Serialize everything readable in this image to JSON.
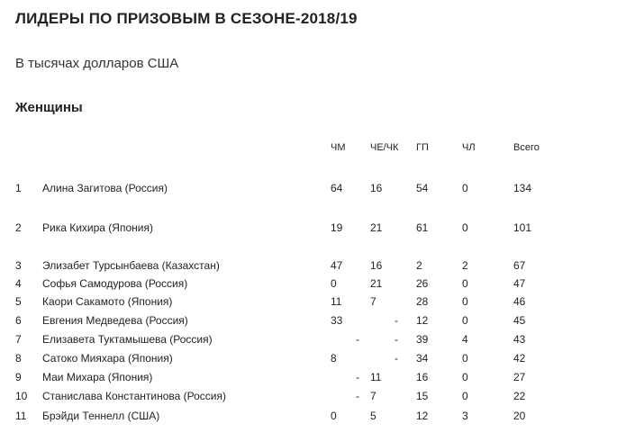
{
  "title": "ЛИДЕРЫ ПО ПРИЗОВЫМ В СЕЗОНЕ-2018/19",
  "subtitle": "В тысячах долларов США",
  "section": "Женщины",
  "columns": [
    "ЧМ",
    "ЧЕ/ЧК",
    "ГП",
    "ЧЛ",
    "Всего"
  ],
  "rows": [
    {
      "rank": "1",
      "name": "Алина Загитова (Россия)",
      "cells": [
        "64",
        "16",
        "54",
        "0",
        "134"
      ]
    },
    {
      "rank": "2",
      "name": "Рика Кихира (Япония)",
      "cells": [
        "19",
        "21",
        "61",
        "0",
        "101"
      ]
    },
    {
      "rank": "3",
      "name": "Элизабет Турсынбаева (Казахстан)",
      "cells": [
        "47",
        "16",
        "2",
        "2",
        "67"
      ]
    },
    {
      "rank": "4",
      "name": "Софья Самодурова (Россия)",
      "cells": [
        "0",
        "21",
        "26",
        "0",
        "47"
      ]
    },
    {
      "rank": "5",
      "name": "Каори Сакамото (Япония)",
      "cells": [
        "11",
        "7",
        "28",
        "0",
        "46"
      ]
    },
    {
      "rank": "6",
      "name": "Евгения Медведева (Россия)",
      "cells": [
        "33",
        "-",
        "12",
        "0",
        "45"
      ]
    },
    {
      "rank": "7",
      "name": "Елизавета Туктамышева (Россия)",
      "cells": [
        "-",
        "-",
        "39",
        "4",
        "43"
      ]
    },
    {
      "rank": "8",
      "name": "Сатоко Мияхара (Япония)",
      "cells": [
        "8",
        "-",
        "34",
        "0",
        "42"
      ]
    },
    {
      "rank": "9",
      "name": "Маи Михара (Япония)",
      "cells": [
        "-",
        "11",
        "16",
        "0",
        "27"
      ]
    },
    {
      "rank": "10",
      "name": "Станислава Константинова (Россия)",
      "cells": [
        "-",
        "7",
        "15",
        "0",
        "22"
      ]
    },
    {
      "rank": "11",
      "name": "Брэйди Теннелл (США)",
      "cells": [
        "0",
        "5",
        "12",
        "3",
        "20"
      ]
    }
  ]
}
